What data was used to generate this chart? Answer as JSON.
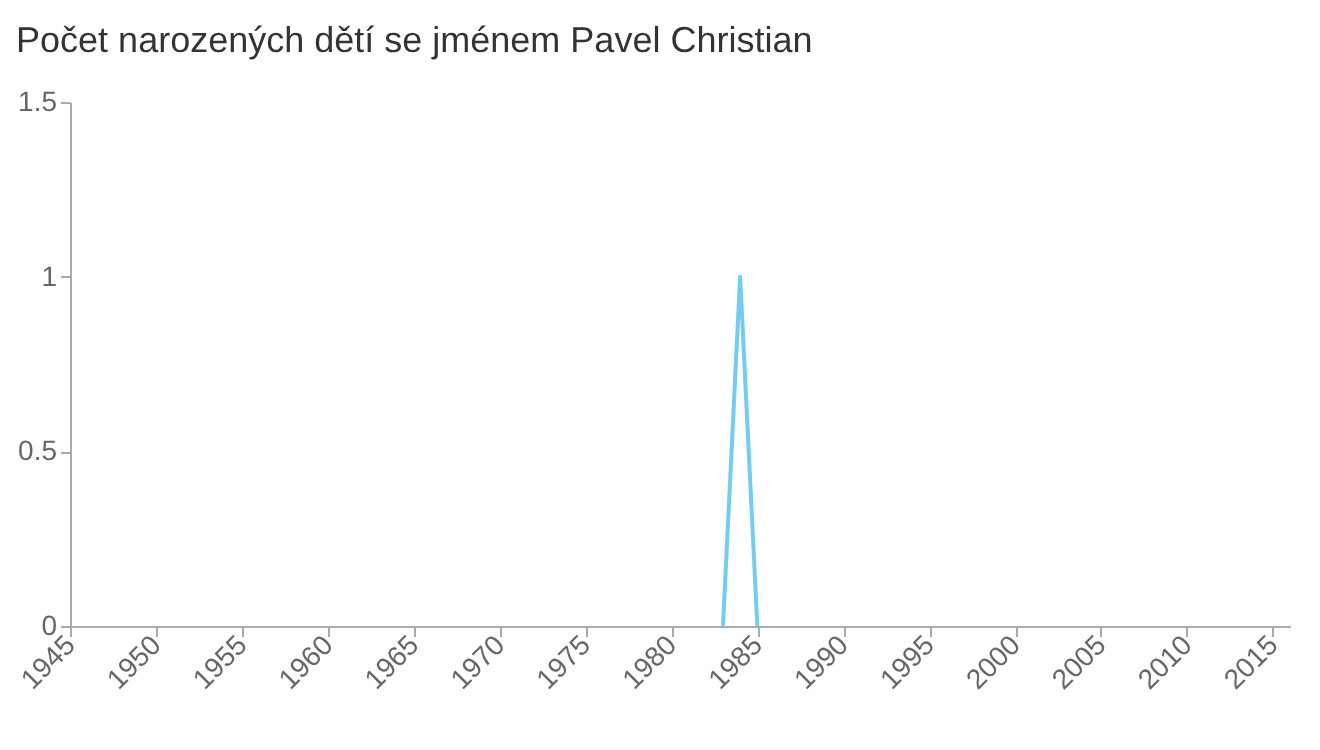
{
  "chart_data": {
    "type": "line",
    "title": "Počet narozených dětí se jménem Pavel Christian",
    "x": [
      1983,
      1984,
      1985
    ],
    "series": [
      {
        "color": "#72cdf0",
        "values": [
          0,
          1,
          0
        ]
      }
    ],
    "xlim": [
      1945,
      2016
    ],
    "xticks": [
      1945,
      1950,
      1955,
      1960,
      1965,
      1970,
      1975,
      1980,
      1985,
      1990,
      1995,
      2000,
      2005,
      2010,
      2015
    ],
    "ylim": [
      0,
      1.5
    ],
    "yticks": [
      0,
      0.5,
      1,
      1.5
    ],
    "grid": false,
    "marker": "none",
    "line_style": "solid"
  }
}
